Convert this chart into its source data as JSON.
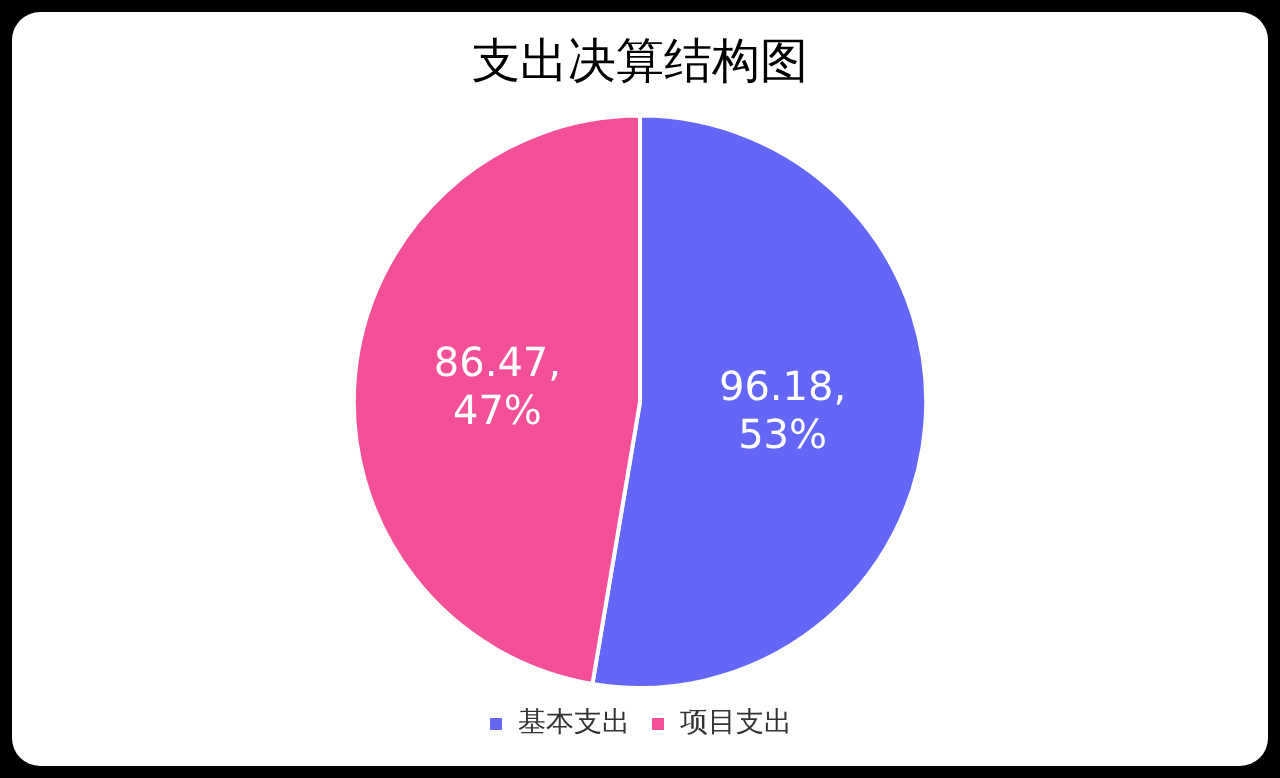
{
  "chart_data": {
    "type": "pie",
    "title": "支出决算结构图",
    "categories": [
      "基本支出",
      "项目支出"
    ],
    "values": [
      96.18,
      86.47
    ],
    "colors": [
      "#6466f8",
      "#f4509a"
    ],
    "value_labels": [
      "96.18,\n53%",
      "86.47,\n47%"
    ],
    "legend": "bottom"
  }
}
